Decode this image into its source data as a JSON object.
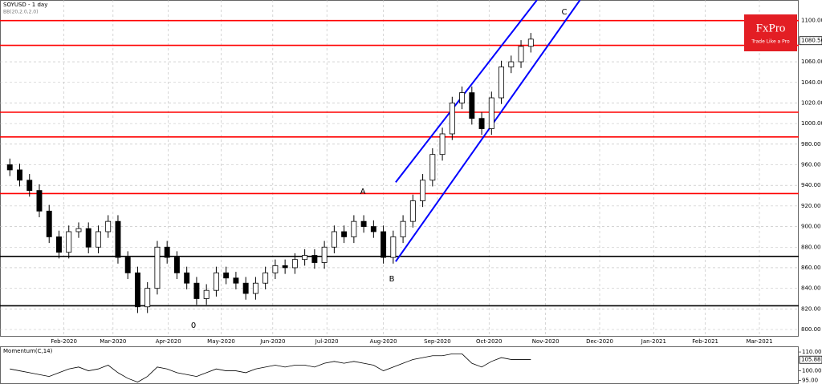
{
  "chart_data": [
    {
      "type": "candlestick",
      "title": "SOYUSD - 1 day",
      "subtitle": "BB(20,2.0,2.0)",
      "x": [
        0,
        4,
        8,
        12,
        16,
        20,
        24,
        28,
        32,
        36,
        40,
        44,
        48,
        52,
        56,
        60,
        64,
        68,
        72,
        76,
        80,
        84,
        88,
        92,
        96,
        100,
        104,
        108,
        112,
        116,
        120,
        124,
        128,
        132,
        136,
        140,
        144,
        148,
        152,
        156,
        160,
        164,
        168,
        172,
        176,
        180,
        184,
        188,
        192,
        196,
        200,
        204,
        208,
        212
      ],
      "open": [
        960,
        955,
        945,
        935,
        915,
        890,
        875,
        895,
        898,
        880,
        895,
        905,
        870,
        855,
        822,
        840,
        880,
        870,
        855,
        845,
        830,
        838,
        855,
        850,
        845,
        835,
        845,
        855,
        862,
        860,
        868,
        872,
        865,
        880,
        895,
        890,
        905,
        900,
        895,
        870,
        890,
        905,
        925,
        945,
        970,
        990,
        1020,
        1030,
        1005,
        995,
        1025,
        1055,
        1060,
        1075
      ],
      "high": [
        966,
        961,
        951,
        941,
        921,
        896,
        901,
        904,
        904,
        901,
        911,
        911,
        876,
        861,
        846,
        886,
        886,
        876,
        861,
        851,
        844,
        861,
        861,
        856,
        851,
        851,
        861,
        868,
        868,
        874,
        878,
        878,
        886,
        901,
        901,
        911,
        911,
        906,
        901,
        896,
        911,
        931,
        951,
        976,
        996,
        1026,
        1036,
        1036,
        1011,
        1031,
        1061,
        1066,
        1081,
        1088
      ],
      "low": [
        949,
        939,
        929,
        909,
        884,
        869,
        869,
        889,
        874,
        874,
        889,
        864,
        849,
        816,
        816,
        834,
        864,
        849,
        839,
        824,
        824,
        832,
        844,
        839,
        829,
        829,
        839,
        849,
        854,
        854,
        862,
        859,
        859,
        874,
        884,
        884,
        894,
        889,
        864,
        864,
        884,
        899,
        919,
        939,
        964,
        984,
        1014,
        999,
        989,
        989,
        1019,
        1049,
        1054,
        1069
      ],
      "close": [
        955,
        945,
        935,
        915,
        890,
        875,
        895,
        898,
        880,
        895,
        905,
        870,
        855,
        822,
        840,
        880,
        870,
        855,
        845,
        830,
        838,
        855,
        850,
        845,
        835,
        845,
        855,
        862,
        860,
        868,
        872,
        865,
        880,
        895,
        890,
        905,
        900,
        895,
        870,
        890,
        905,
        925,
        945,
        970,
        990,
        1020,
        1030,
        1005,
        995,
        1025,
        1055,
        1060,
        1075,
        1082
      ],
      "up_color": "#ffffff",
      "down_color": "#000000",
      "xlim": [
        -4,
        321
      ],
      "ylim": [
        793,
        1120
      ],
      "xticks": [
        {
          "value": 22,
          "label": "Feb-2020"
        },
        {
          "value": 42,
          "label": "Mar-2020"
        },
        {
          "value": 64.5,
          "label": "Apr-2020"
        },
        {
          "value": 86,
          "label": "May-2020"
        },
        {
          "value": 107,
          "label": "Jun-2020"
        },
        {
          "value": 129,
          "label": "Jul-2020"
        },
        {
          "value": 152,
          "label": "Aug-2020"
        },
        {
          "value": 174,
          "label": "Sep-2020"
        },
        {
          "value": 195,
          "label": "Oct-2020"
        },
        {
          "value": 218,
          "label": "Nov-2020"
        },
        {
          "value": 240,
          "label": "Dec-2020"
        },
        {
          "value": 262,
          "label": "Jan-2021"
        },
        {
          "value": 283,
          "label": "Feb-2021"
        },
        {
          "value": 305,
          "label": "Mar-2021"
        }
      ],
      "yticks": [
        {
          "value": 800,
          "label": "800.00"
        },
        {
          "value": 820,
          "label": "820.00"
        },
        {
          "value": 840,
          "label": "840.00"
        },
        {
          "value": 860,
          "label": "860.00"
        },
        {
          "value": 880,
          "label": "880.00"
        },
        {
          "value": 900,
          "label": "900.00"
        },
        {
          "value": 920,
          "label": "920.00"
        },
        {
          "value": 940,
          "label": "940.00"
        },
        {
          "value": 960,
          "label": "960.00"
        },
        {
          "value": 980,
          "label": "980.00"
        },
        {
          "value": 1000,
          "label": "1000.00"
        },
        {
          "value": 1020,
          "label": "1020.00"
        },
        {
          "value": 1040,
          "label": "1040.00"
        },
        {
          "value": 1060,
          "label": "1060.00"
        },
        {
          "value": 1100,
          "label": "1100.00"
        }
      ],
      "grid": true,
      "last_price": {
        "value": 1080.5,
        "label": "1080.50"
      },
      "levels": [
        {
          "value": 1100,
          "color": "#ff0000"
        },
        {
          "value": 1076,
          "color": "#ff0000"
        },
        {
          "value": 1011,
          "color": "#ff0000"
        },
        {
          "value": 987,
          "color": "#ff0000"
        },
        {
          "value": 932,
          "color": "#ff0000"
        },
        {
          "value": 871,
          "color": "#000000"
        },
        {
          "value": 823,
          "color": "#000000"
        }
      ],
      "channels": [
        {
          "x": [
            157,
            214.5
          ],
          "y": [
            943,
            1120
          ],
          "color": "#0000ff"
        },
        {
          "x": [
            157,
            232
          ],
          "y": [
            866,
            1120
          ],
          "color": "#0000ff"
        }
      ],
      "wave_labels": [
        "A",
        "B",
        "C",
        "0"
      ],
      "logo": {
        "name": "FxPro",
        "tagline": "Trade Like a Pro"
      }
    },
    {
      "type": "line",
      "title": "Momentum(C,14)",
      "color": "#000000",
      "x": [
        0,
        4,
        8,
        12,
        16,
        20,
        24,
        28,
        32,
        36,
        40,
        44,
        48,
        52,
        56,
        60,
        64,
        68,
        72,
        76,
        80,
        84,
        88,
        92,
        96,
        100,
        104,
        108,
        112,
        116,
        120,
        124,
        128,
        132,
        136,
        140,
        144,
        148,
        152,
        156,
        160,
        164,
        168,
        172,
        176,
        180,
        184,
        188,
        192,
        196,
        200,
        204,
        208,
        212
      ],
      "values": [
        101,
        100,
        99,
        98,
        97,
        99,
        101,
        102,
        100,
        101,
        103,
        99,
        96,
        94,
        97,
        102,
        101,
        99,
        98,
        97,
        99,
        101,
        100,
        100,
        99,
        101,
        102,
        103,
        102,
        103,
        103,
        102,
        104,
        105,
        104,
        105,
        104,
        103,
        100,
        102,
        104,
        106,
        107,
        108,
        108,
        109,
        109,
        104,
        102,
        105,
        107,
        106,
        106,
        106
      ],
      "xlim": [
        -4,
        321
      ],
      "ylim": [
        93,
        113
      ],
      "yticks": [
        {
          "value": 95,
          "label": "95.00"
        },
        {
          "value": 100,
          "label": "100.00"
        },
        {
          "value": 110,
          "label": "110.00"
        }
      ],
      "last_value": {
        "value": 105.88,
        "label": "105.88"
      }
    }
  ]
}
